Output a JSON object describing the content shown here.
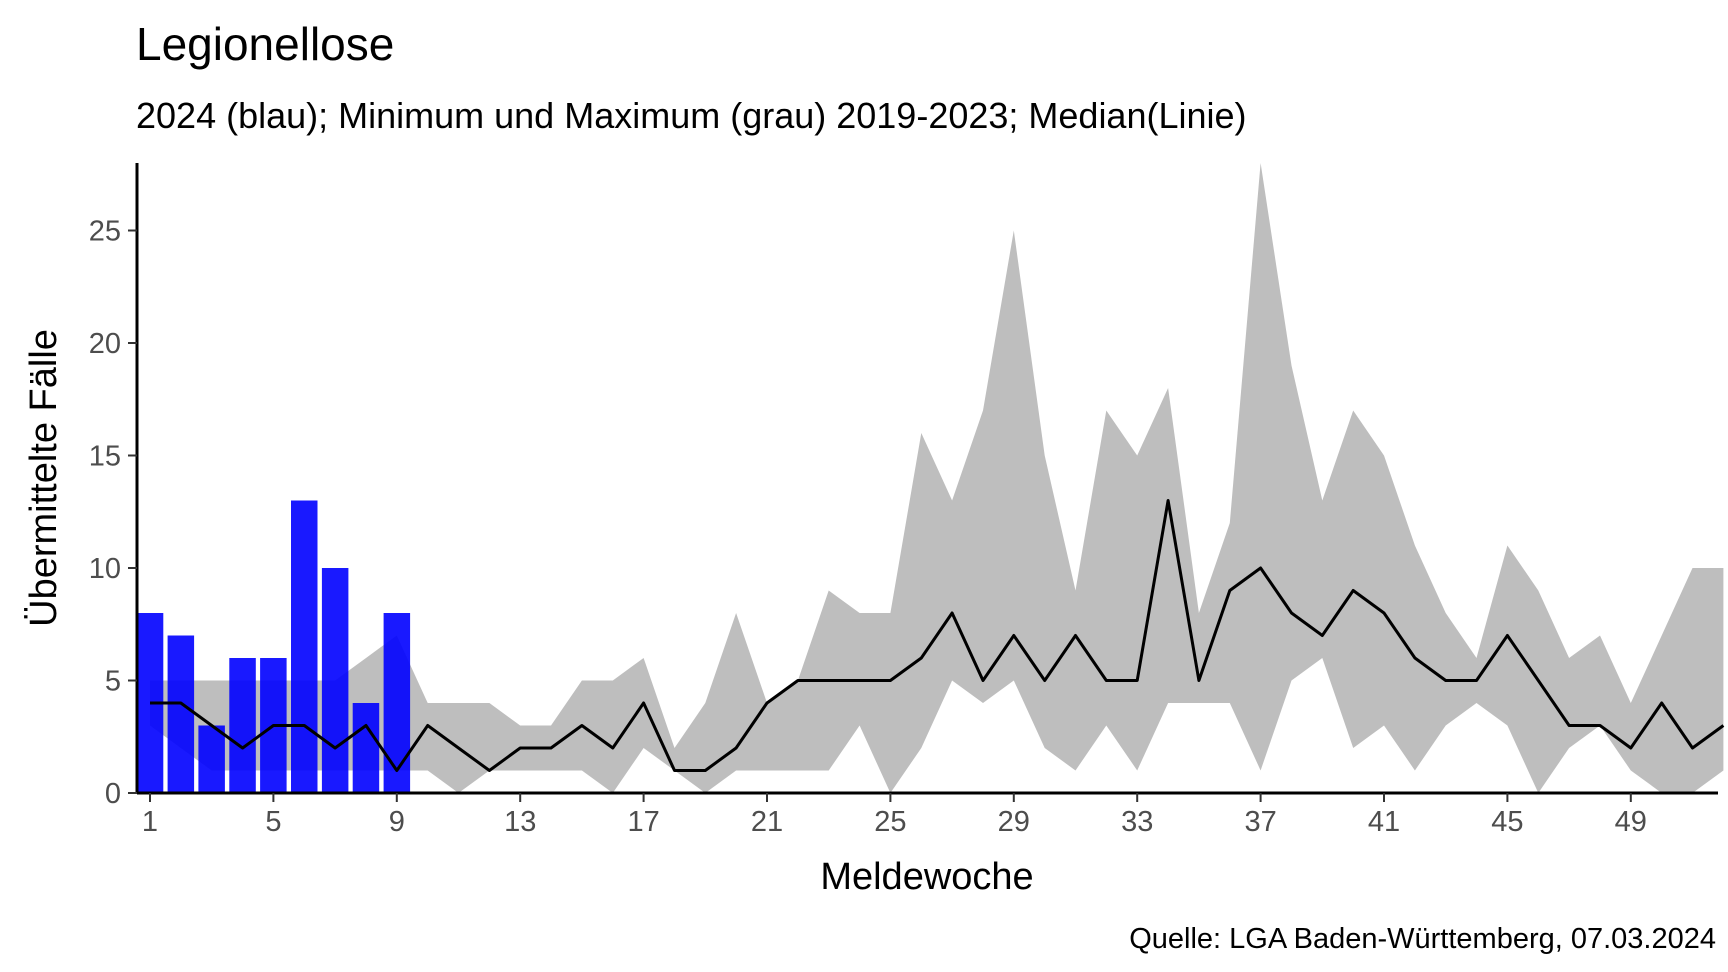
{
  "chart_data": {
    "type": "bar",
    "title": "Legionellose",
    "subtitle": "2024 (blau); Minimum und Maximum (grau) 2019-2023; Median(Linie)",
    "xlabel": "Meldewoche",
    "ylabel": "Übermittelte Fälle",
    "caption": "Quelle: LGA Baden-Württemberg, 07.03.2024",
    "x_ticks": [
      1,
      5,
      9,
      13,
      17,
      21,
      25,
      29,
      33,
      37,
      41,
      45,
      49
    ],
    "y_ticks": [
      0,
      5,
      10,
      15,
      20,
      25
    ],
    "xlim": [
      0.6,
      52
    ],
    "ylim": [
      0,
      28
    ],
    "bar_color": "#0000ff",
    "band_color": "#bebebe",
    "line_color": "#000000",
    "weeks": [
      1,
      2,
      3,
      4,
      5,
      6,
      7,
      8,
      9,
      10,
      11,
      12,
      13,
      14,
      15,
      16,
      17,
      18,
      19,
      20,
      21,
      22,
      23,
      24,
      25,
      26,
      27,
      28,
      29,
      30,
      31,
      32,
      33,
      34,
      35,
      36,
      37,
      38,
      39,
      40,
      41,
      42,
      43,
      44,
      45,
      46,
      47,
      48,
      49,
      50,
      51,
      52
    ],
    "bars_2024": {
      "weeks": [
        1,
        2,
        3,
        4,
        5,
        6,
        7,
        8,
        9
      ],
      "values": [
        8,
        7,
        3,
        6,
        6,
        13,
        10,
        4,
        8
      ]
    },
    "band_min": [
      3,
      2,
      1,
      1,
      1,
      1,
      1,
      1,
      1,
      1,
      0,
      1,
      1,
      1,
      1,
      0,
      2,
      1,
      0,
      1,
      1,
      1,
      1,
      3,
      0,
      2,
      5,
      4,
      5,
      2,
      1,
      3,
      1,
      4,
      4,
      4,
      1,
      5,
      6,
      2,
      3,
      1,
      3,
      4,
      3,
      0,
      2,
      3,
      1,
      0,
      0,
      1
    ],
    "band_max": [
      5,
      5,
      5,
      5,
      5,
      5,
      5,
      6,
      7,
      4,
      4,
      4,
      3,
      3,
      5,
      5,
      6,
      2,
      4,
      8,
      4,
      5,
      9,
      8,
      8,
      16,
      13,
      17,
      25,
      15,
      9,
      17,
      15,
      18,
      8,
      12,
      28,
      19,
      13,
      17,
      15,
      11,
      8,
      6,
      11,
      9,
      6,
      7,
      4,
      7,
      10,
      10
    ],
    "median": [
      4,
      4,
      3,
      2,
      3,
      3,
      2,
      3,
      1,
      3,
      2,
      1,
      2,
      2,
      3,
      2,
      4,
      1,
      1,
      2,
      4,
      5,
      5,
      5,
      5,
      6,
      8,
      5,
      7,
      5,
      7,
      5,
      5,
      13,
      5,
      9,
      10,
      8,
      7,
      9,
      8,
      6,
      5,
      5,
      7,
      5,
      3,
      3,
      2,
      4,
      2,
      3
    ]
  }
}
